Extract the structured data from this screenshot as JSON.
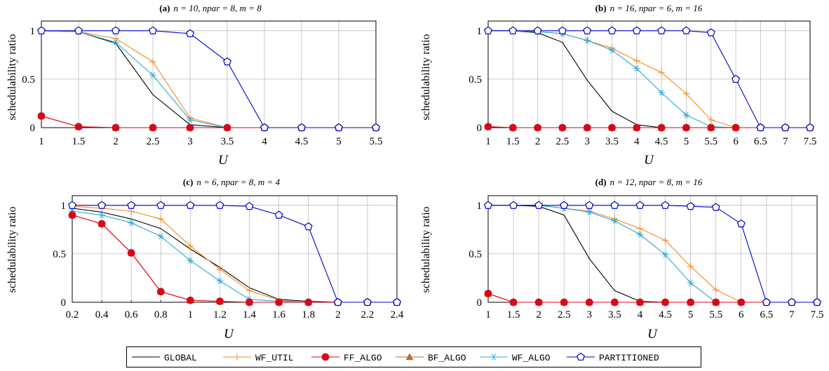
{
  "chart_data": [
    {
      "id": "a",
      "type": "line",
      "title_tag": "(a)",
      "title_math": "n = 10, npar = 8, m = 8",
      "ylabel": "schedulability ratio",
      "xlabel": "U",
      "x": [
        1,
        1.5,
        2,
        2.5,
        3,
        3.5,
        4,
        4.5,
        5,
        5.5
      ],
      "xlim": [
        1,
        5.5
      ],
      "ylim": [
        0,
        1.1
      ],
      "xticks": [
        "1",
        "1.5",
        "2",
        "2.5",
        "3",
        "3.5",
        "4",
        "4.5",
        "5",
        "5.5"
      ],
      "yticks": [
        "0",
        "0.5",
        "1"
      ],
      "grid": true,
      "series": [
        {
          "name": "GLOBAL",
          "values": [
            1,
            0.99,
            0.87,
            0.34,
            0.03,
            0,
            0,
            0,
            0,
            0
          ]
        },
        {
          "name": "WF_UTIL",
          "values": [
            1,
            0.99,
            0.92,
            0.68,
            0.1,
            0,
            0,
            0,
            0,
            0
          ]
        },
        {
          "name": "FF_ALGO",
          "values": [
            0.12,
            0.01,
            0,
            0,
            0,
            0,
            0,
            0,
            0,
            0
          ]
        },
        {
          "name": "BF_ALGO",
          "values": [
            0.12,
            0.01,
            0,
            0,
            0,
            0,
            0,
            0,
            0,
            0
          ]
        },
        {
          "name": "WF_ALGO",
          "values": [
            1,
            0.99,
            0.88,
            0.54,
            0.08,
            0,
            0,
            0,
            0,
            0
          ]
        },
        {
          "name": "PARTITIONED",
          "values": [
            1,
            1,
            1,
            1,
            0.97,
            0.68,
            0,
            0,
            0,
            0
          ]
        }
      ]
    },
    {
      "id": "b",
      "type": "line",
      "title_tag": "(b)",
      "title_math": "n = 16, npar = 6, m = 16",
      "ylabel": "schedulability ratio",
      "xlabel": "U",
      "x": [
        1,
        1.5,
        2,
        2.5,
        3,
        3.5,
        4,
        4.5,
        5,
        5.5,
        6,
        6.5,
        7,
        7.5
      ],
      "xlim": [
        1,
        7.5
      ],
      "ylim": [
        0,
        1.1
      ],
      "xticks": [
        "1",
        "1.5",
        "2",
        "2.5",
        "3",
        "3.5",
        "4",
        "4.5",
        "5",
        "5.5",
        "6",
        "6.5",
        "7",
        "7.5"
      ],
      "yticks": [
        "0",
        "0.5",
        "1"
      ],
      "grid": true,
      "series": [
        {
          "name": "GLOBAL",
          "values": [
            1,
            1,
            0.98,
            0.88,
            0.49,
            0.17,
            0.03,
            0,
            0,
            0,
            0,
            0,
            0,
            0
          ]
        },
        {
          "name": "WF_UTIL",
          "values": [
            1,
            1,
            0.99,
            0.97,
            0.9,
            0.82,
            0.69,
            0.57,
            0.35,
            0.08,
            0,
            0,
            0,
            0
          ]
        },
        {
          "name": "FF_ALGO",
          "values": [
            0.01,
            0,
            0,
            0,
            0,
            0,
            0,
            0,
            0,
            0,
            0,
            0,
            0,
            0
          ]
        },
        {
          "name": "BF_ALGO",
          "values": [
            0.01,
            0,
            0,
            0,
            0,
            0,
            0,
            0,
            0,
            0,
            0,
            0,
            0,
            0
          ]
        },
        {
          "name": "WF_ALGO",
          "values": [
            1,
            1,
            0.99,
            0.97,
            0.9,
            0.8,
            0.61,
            0.36,
            0.13,
            0.01,
            0,
            0,
            0,
            0
          ]
        },
        {
          "name": "PARTITIONED",
          "values": [
            1,
            1,
            1,
            1,
            1,
            1,
            1,
            1,
            1,
            0.98,
            0.5,
            0,
            0,
            0
          ]
        }
      ]
    },
    {
      "id": "c",
      "type": "line",
      "title_tag": "(c)",
      "title_math": "n = 6, npar = 8, m = 4",
      "ylabel": "schedulability ratio",
      "xlabel": "U",
      "x": [
        0.2,
        0.4,
        0.6,
        0.8,
        1,
        1.2,
        1.4,
        1.6,
        1.8,
        2,
        2.2,
        2.4
      ],
      "xlim": [
        0.2,
        2.4
      ],
      "ylim": [
        0,
        1.1
      ],
      "xticks": [
        "0.2",
        "0.4",
        "0.6",
        "0.8",
        "1",
        "1.2",
        "1.4",
        "1.6",
        "1.8",
        "2",
        "2.2",
        "2.4"
      ],
      "yticks": [
        "0",
        "0.5",
        "1"
      ],
      "grid": true,
      "series": [
        {
          "name": "GLOBAL",
          "values": [
            0.97,
            0.93,
            0.86,
            0.76,
            0.55,
            0.36,
            0.15,
            0.03,
            0.01,
            0,
            0,
            0
          ]
        },
        {
          "name": "WF_UTIL",
          "values": [
            0.99,
            0.97,
            0.94,
            0.86,
            0.58,
            0.34,
            0.12,
            0.02,
            0,
            0,
            0,
            0
          ]
        },
        {
          "name": "FF_ALGO",
          "values": [
            0.9,
            0.81,
            0.51,
            0.11,
            0.02,
            0.01,
            0,
            0,
            0,
            0,
            0,
            0
          ]
        },
        {
          "name": "BF_ALGO",
          "values": [
            0.9,
            0.81,
            0.51,
            0.11,
            0.02,
            0.01,
            0,
            0,
            0,
            0,
            0,
            0
          ]
        },
        {
          "name": "WF_ALGO",
          "values": [
            0.94,
            0.9,
            0.82,
            0.68,
            0.43,
            0.22,
            0.03,
            0.01,
            0,
            0,
            0,
            0
          ]
        },
        {
          "name": "PARTITIONED",
          "values": [
            1,
            1,
            1,
            1,
            1,
            1,
            0.99,
            0.9,
            0.78,
            0,
            0,
            0
          ]
        }
      ]
    },
    {
      "id": "d",
      "type": "line",
      "title_tag": "(d)",
      "title_math": "n = 12, npar = 8, m = 16",
      "ylabel": "schedulability ratio",
      "xlabel": "U",
      "x": [
        1,
        1.5,
        2,
        2.5,
        3,
        3.5,
        4,
        4.5,
        5,
        5.5,
        6,
        6.5,
        7,
        7.5
      ],
      "xlim": [
        1,
        7.5
      ],
      "ylim": [
        0,
        1.1
      ],
      "xticks": [
        "1",
        "1.5",
        "2",
        "2.5",
        "3",
        "3.5",
        "4",
        "4.5",
        "5",
        "5.5",
        "6",
        "6.5",
        "7",
        "7.5"
      ],
      "yticks": [
        "0",
        "0.5",
        "1"
      ],
      "grid": true,
      "series": [
        {
          "name": "GLOBAL",
          "values": [
            1,
            1,
            0.99,
            0.9,
            0.45,
            0.12,
            0.01,
            0,
            0,
            0,
            0,
            0,
            0,
            0
          ]
        },
        {
          "name": "WF_UTIL",
          "values": [
            1,
            1,
            1,
            0.97,
            0.94,
            0.86,
            0.76,
            0.64,
            0.37,
            0.13,
            0,
            0,
            0,
            0
          ]
        },
        {
          "name": "FF_ALGO",
          "values": [
            0.09,
            0,
            0,
            0,
            0,
            0,
            0,
            0,
            0,
            0,
            0,
            0,
            0,
            0
          ]
        },
        {
          "name": "BF_ALGO",
          "values": [
            0.09,
            0,
            0,
            0,
            0,
            0,
            0,
            0,
            0,
            0,
            0,
            0,
            0,
            0
          ]
        },
        {
          "name": "WF_ALGO",
          "values": [
            1,
            1,
            1,
            0.97,
            0.93,
            0.84,
            0.7,
            0.49,
            0.2,
            0,
            0,
            0,
            0,
            0
          ]
        },
        {
          "name": "PARTITIONED",
          "values": [
            1,
            1,
            1,
            1,
            1,
            1,
            1,
            1,
            0.99,
            0.98,
            0.81,
            0,
            0,
            0
          ]
        }
      ]
    }
  ],
  "legend": {
    "placement": "bottom-center",
    "entries": [
      {
        "label": "GLOBAL",
        "color": "#000000",
        "marker": "none"
      },
      {
        "label": "WF_UTIL",
        "color": "#f28a1f",
        "marker": "plus"
      },
      {
        "label": "FF_ALGO",
        "color": "#e3001b",
        "marker": "circle"
      },
      {
        "label": "BF_ALGO",
        "color": "#b96a2c",
        "marker": "triangle"
      },
      {
        "label": "WF_ALGO",
        "color": "#2aa8d8",
        "marker": "asterisk"
      },
      {
        "label": "PARTITIONED",
        "color": "#0000cc",
        "marker": "pentagon"
      }
    ]
  },
  "series_style": {
    "GLOBAL": {
      "color": "#000000",
      "marker": "none"
    },
    "WF_UTIL": {
      "color": "#f28a1f",
      "marker": "plus"
    },
    "FF_ALGO": {
      "color": "#e3001b",
      "marker": "circle"
    },
    "BF_ALGO": {
      "color": "#b96a2c",
      "marker": "triangle"
    },
    "WF_ALGO": {
      "color": "#2aa8d8",
      "marker": "asterisk"
    },
    "PARTITIONED": {
      "color": "#0000cc",
      "marker": "pentagon"
    }
  }
}
